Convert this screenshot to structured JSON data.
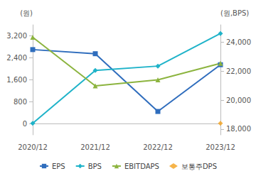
{
  "chart_data": {
    "type": "line",
    "categories": [
      "2020/12",
      "2021/12",
      "2022/12",
      "2023/12"
    ],
    "y_label": "(원)",
    "y2_label": "(원,BPS)",
    "ylim": [
      -400,
      3600
    ],
    "yticks": [
      0,
      {
        "value": 800,
        "label": "800"
      },
      {
        "value": 1600,
        "label": "1,600"
      },
      {
        "value": 2400,
        "label": "2,400"
      },
      {
        "value": 3200,
        "label": "3,200"
      }
    ],
    "y2lim": [
      17600,
      25200
    ],
    "y2ticks": [
      {
        "value": 18000,
        "label": "18,000"
      },
      {
        "value": 20000,
        "label": "20,000"
      },
      {
        "value": 22000,
        "label": "22,000"
      },
      {
        "value": 24000,
        "label": "24,000"
      }
    ],
    "grid": false,
    "legend": "bottom",
    "series": [
      {
        "name": "EPS",
        "color": "#2f6dbd",
        "marker": "square",
        "values": [
          2700,
          2550,
          450,
          2150
        ]
      },
      {
        "name": "BPS",
        "color": "#1fb3c9",
        "marker": "diamond",
        "axis": "y2",
        "values": [
          18400,
          22050,
          22350,
          24600
        ]
      },
      {
        "name": "EBITDAPS",
        "color": "#8cb43f",
        "marker": "triangle",
        "values": [
          3150,
          1380,
          1600,
          2200
        ]
      },
      {
        "name": "보통주DPS",
        "color": "#f4a11d",
        "marker": "diamond",
        "type": "scatter",
        "values": [
          null,
          null,
          null,
          20
        ]
      }
    ]
  }
}
